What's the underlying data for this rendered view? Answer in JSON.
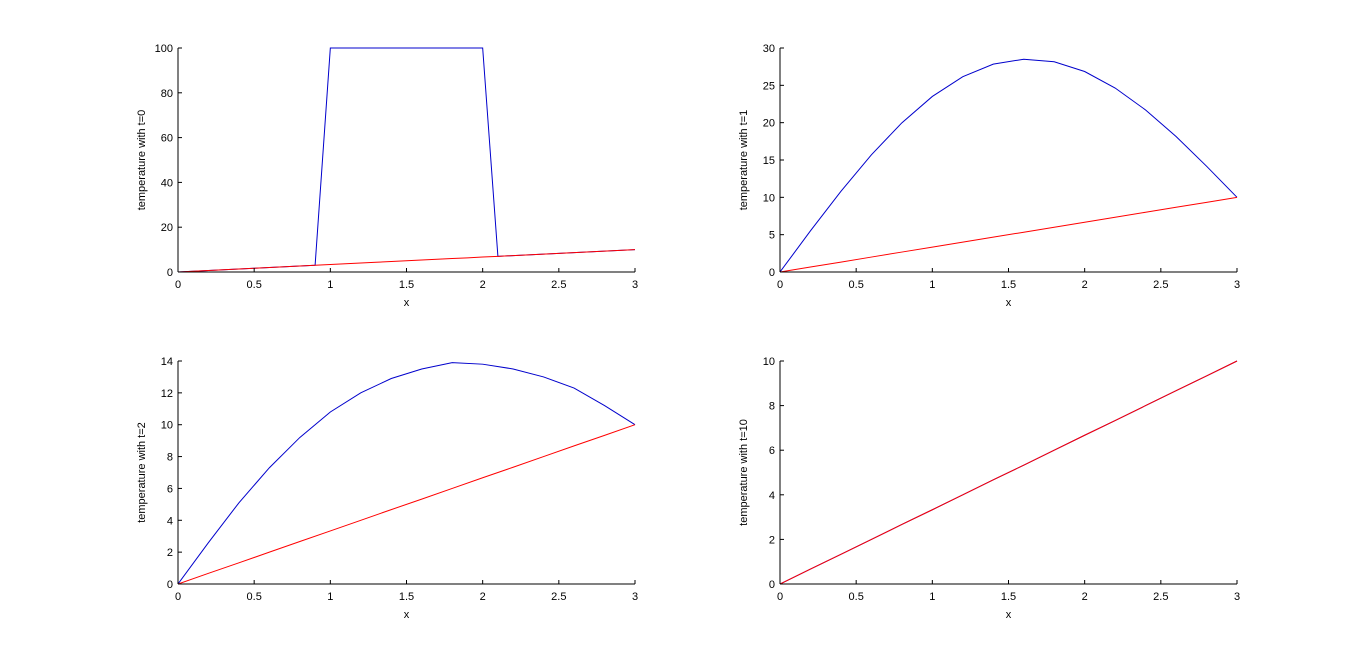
{
  "chart_data": [
    {
      "type": "line",
      "xlabel": "x",
      "ylabel": "temperature with t=0",
      "x": [
        0,
        0.1,
        0.2,
        0.3,
        0.4,
        0.5,
        0.6,
        0.7,
        0.8,
        0.9,
        1,
        1.1,
        1.2,
        1.3,
        1.4,
        1.5,
        1.6,
        1.7,
        1.8,
        1.9,
        2,
        2.1,
        2.2,
        2.3,
        2.4,
        2.5,
        2.6,
        2.7,
        2.8,
        2.9,
        3
      ],
      "series": [
        {
          "color": "#0000cc",
          "values": [
            0,
            0.33,
            0.67,
            1,
            1.33,
            1.67,
            2,
            2.33,
            2.67,
            3,
            100,
            100,
            100,
            100,
            100,
            100,
            100,
            100,
            100,
            100,
            100,
            7,
            7.33,
            7.67,
            8,
            8.33,
            8.67,
            9,
            9.33,
            9.67,
            10
          ]
        },
        {
          "color": "#ff0000",
          "values": [
            0,
            0.33,
            0.67,
            1,
            1.33,
            1.67,
            2,
            2.33,
            2.67,
            3,
            3.33,
            3.67,
            4,
            4.33,
            4.67,
            5,
            5.33,
            5.67,
            6,
            6.33,
            6.67,
            7,
            7.33,
            7.67,
            8,
            8.33,
            8.67,
            9,
            9.33,
            9.67,
            10
          ]
        }
      ],
      "xlim": [
        0,
        3
      ],
      "xticks": [
        0,
        0.5,
        1,
        1.5,
        2,
        2.5,
        3
      ],
      "ylim": [
        0,
        100
      ],
      "yticks": [
        0,
        20,
        40,
        60,
        80,
        100
      ]
    },
    {
      "type": "line",
      "xlabel": "x",
      "ylabel": "temperature with t=1",
      "x": [
        0,
        0.2,
        0.4,
        0.6,
        0.8,
        1,
        1.2,
        1.4,
        1.6,
        1.8,
        2,
        2.2,
        2.4,
        2.6,
        2.8,
        3
      ],
      "series": [
        {
          "color": "#0000cc",
          "values": [
            0,
            5.51,
            10.81,
            15.7,
            19.98,
            23.51,
            26.16,
            27.84,
            28.5,
            28.16,
            26.85,
            24.64,
            21.7,
            18.15,
            14.17,
            10
          ]
        },
        {
          "color": "#ff0000",
          "values": [
            0,
            0.67,
            1.33,
            2,
            2.67,
            3.33,
            4,
            4.67,
            5.33,
            6,
            6.67,
            7.33,
            8,
            8.67,
            9.33,
            10
          ]
        }
      ],
      "xlim": [
        0,
        3
      ],
      "xticks": [
        0,
        0.5,
        1,
        1.5,
        2,
        2.5,
        3
      ],
      "ylim": [
        0,
        30
      ],
      "yticks": [
        0,
        5,
        10,
        15,
        20,
        25,
        30
      ]
    },
    {
      "type": "line",
      "xlabel": "x",
      "ylabel": "temperature with t=2",
      "x": [
        0,
        0.2,
        0.4,
        0.6,
        0.8,
        1,
        1.2,
        1.4,
        1.6,
        1.8,
        2,
        2.2,
        2.4,
        2.6,
        2.8,
        3
      ],
      "series": [
        {
          "color": "#0000cc",
          "values": [
            0,
            2.6,
            5.1,
            7.3,
            9.2,
            10.8,
            12,
            12.9,
            13.5,
            13.9,
            13.8,
            13.5,
            13,
            12.3,
            11.2,
            10
          ]
        },
        {
          "color": "#ff0000",
          "values": [
            0,
            0.67,
            1.33,
            2,
            2.67,
            3.33,
            4,
            4.67,
            5.33,
            6,
            6.67,
            7.33,
            8,
            8.67,
            9.33,
            10
          ]
        }
      ],
      "xlim": [
        0,
        3
      ],
      "xticks": [
        0,
        0.5,
        1,
        1.5,
        2,
        2.5,
        3
      ],
      "ylim": [
        0,
        14
      ],
      "yticks": [
        0,
        2,
        4,
        6,
        8,
        10,
        12,
        14
      ]
    },
    {
      "type": "line",
      "xlabel": "x",
      "ylabel": "temperature with t=10",
      "x": [
        0,
        0.2,
        0.4,
        0.6,
        0.8,
        1,
        1.2,
        1.4,
        1.6,
        1.8,
        2,
        2.2,
        2.4,
        2.6,
        2.8,
        3
      ],
      "series": [
        {
          "color": "#0000cc",
          "values": [
            0,
            0.67,
            1.33,
            2,
            2.67,
            3.33,
            4,
            4.67,
            5.33,
            6,
            6.67,
            7.33,
            8,
            8.67,
            9.33,
            10
          ]
        },
        {
          "color": "#ff0000",
          "values": [
            0,
            0.67,
            1.33,
            2,
            2.67,
            3.33,
            4,
            4.67,
            5.33,
            6,
            6.67,
            7.33,
            8,
            8.67,
            9.33,
            10
          ]
        }
      ],
      "xlim": [
        0,
        3
      ],
      "xticks": [
        0,
        0.5,
        1,
        1.5,
        2,
        2.5,
        3
      ],
      "ylim": [
        0,
        10
      ],
      "yticks": [
        0,
        2,
        4,
        6,
        8,
        10
      ]
    }
  ]
}
